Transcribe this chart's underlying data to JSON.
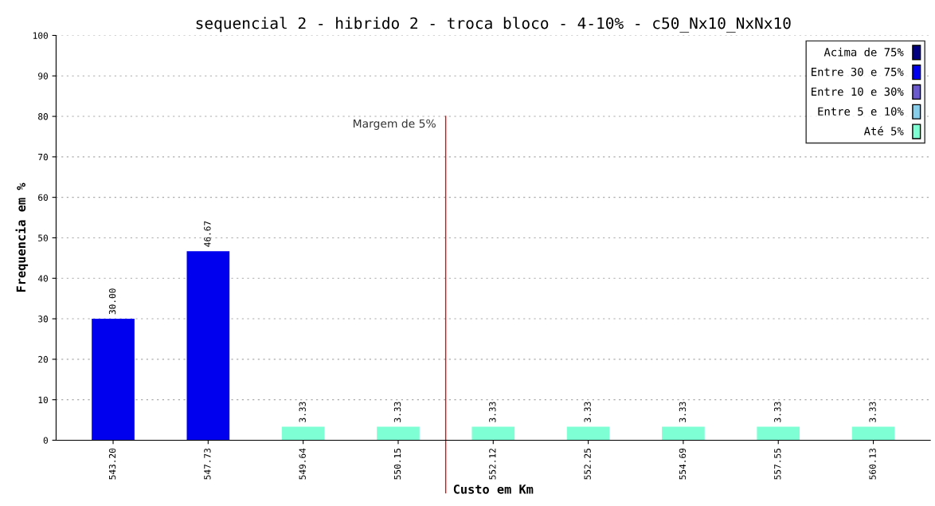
{
  "chart_data": {
    "type": "bar",
    "title": "sequencial 2 - hibrido 2 - troca bloco - 4-10% - c50_Nx10_NxNx10",
    "xlabel": "Custo em Km",
    "ylabel": "Frequencia em %",
    "categories": [
      "543.20",
      "547.73",
      "549.64",
      "550.15",
      "552.12",
      "552.25",
      "554.69",
      "557.55",
      "560.13"
    ],
    "annotations": [
      "Margem de 5%"
    ],
    "series": [
      {
        "name": "Acima de 75%",
        "color": "#000080",
        "values": [
          null,
          null,
          null,
          null,
          null,
          null,
          null,
          null,
          null
        ]
      },
      {
        "name": "Entre 30 e 75%",
        "color": "#0000ee",
        "values": [
          30.0,
          46.67,
          null,
          null,
          null,
          null,
          null,
          null,
          null
        ],
        "value_labels": [
          "30.00",
          "46.67",
          null,
          null,
          null,
          null,
          null,
          null,
          null
        ]
      },
      {
        "name": "Entre 10 e 30%",
        "color": "#6a5acd",
        "values": [
          null,
          null,
          null,
          null,
          null,
          null,
          null,
          null,
          null
        ]
      },
      {
        "name": "Entre 5 e 10%",
        "color": "#87ceeb",
        "values": [
          null,
          null,
          null,
          null,
          null,
          null,
          null,
          null,
          null
        ]
      },
      {
        "name": "Até 5%",
        "color": "#7fffd4",
        "values": [
          null,
          null,
          3.33,
          3.33,
          3.33,
          3.33,
          3.33,
          3.33,
          3.33
        ],
        "value_labels": [
          null,
          null,
          "3.33",
          "3.33",
          "3.33",
          "3.33",
          "3.33",
          "3.33",
          "3.33"
        ]
      }
    ],
    "ylim": [
      0,
      100
    ],
    "yticks": [
      0,
      10,
      20,
      30,
      40,
      50,
      60,
      70,
      80,
      90,
      100
    ],
    "grid": "y",
    "legend": "top right"
  }
}
